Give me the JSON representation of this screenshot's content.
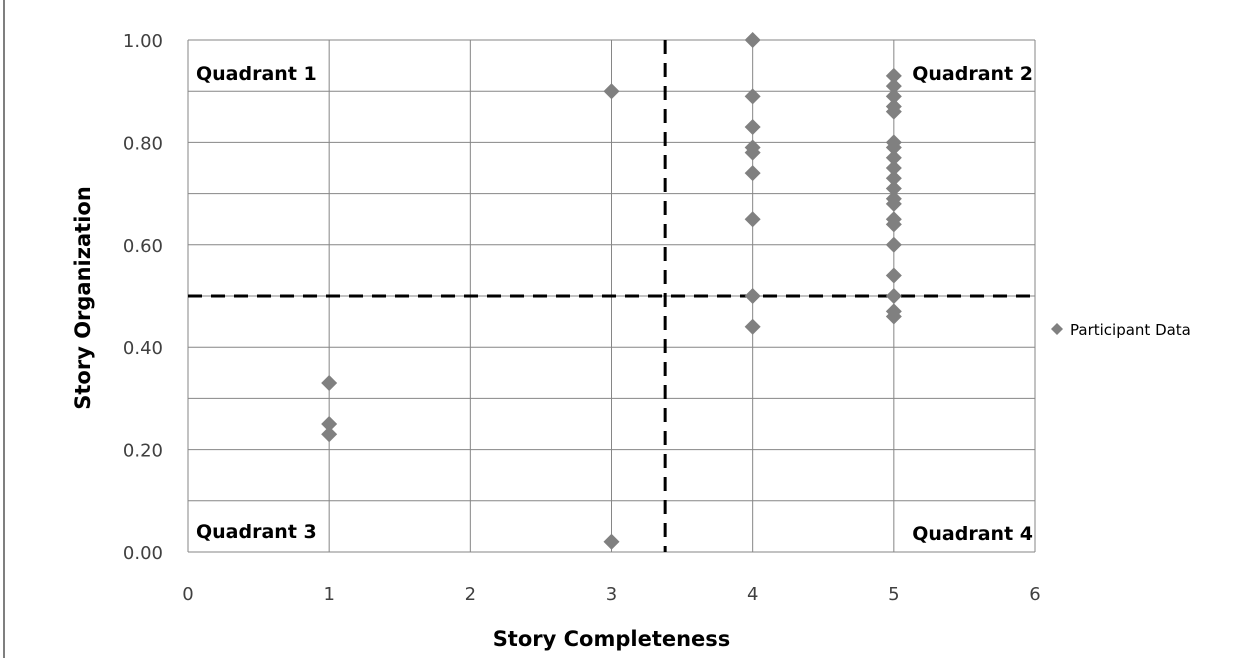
{
  "chart_data": {
    "type": "scatter",
    "title": "",
    "xlabel": "Story Completeness",
    "ylabel": "Story Organization",
    "xlim": [
      0,
      6
    ],
    "ylim": [
      0,
      1
    ],
    "x_ticks": [
      "0",
      "1",
      "2",
      "3",
      "4",
      "5",
      "6"
    ],
    "y_ticks": [
      "0.00",
      "0.20",
      "0.40",
      "0.60",
      "0.80",
      "1.00"
    ],
    "grid": true,
    "legend_placement": "right",
    "marker_color": "#808080",
    "series": [
      {
        "name": "Participant Data",
        "points": [
          {
            "x": 1,
            "y": 0.33
          },
          {
            "x": 1,
            "y": 0.25
          },
          {
            "x": 1,
            "y": 0.23
          },
          {
            "x": 3,
            "y": 0.9
          },
          {
            "x": 3,
            "y": 0.02
          },
          {
            "x": 4,
            "y": 1.0
          },
          {
            "x": 4,
            "y": 0.89
          },
          {
            "x": 4,
            "y": 0.83
          },
          {
            "x": 4,
            "y": 0.79
          },
          {
            "x": 4,
            "y": 0.78
          },
          {
            "x": 4,
            "y": 0.74
          },
          {
            "x": 4,
            "y": 0.65
          },
          {
            "x": 4,
            "y": 0.5
          },
          {
            "x": 4,
            "y": 0.44
          },
          {
            "x": 5,
            "y": 0.93
          },
          {
            "x": 5,
            "y": 0.91
          },
          {
            "x": 5,
            "y": 0.89
          },
          {
            "x": 5,
            "y": 0.87
          },
          {
            "x": 5,
            "y": 0.86
          },
          {
            "x": 5,
            "y": 0.8
          },
          {
            "x": 5,
            "y": 0.79
          },
          {
            "x": 5,
            "y": 0.77
          },
          {
            "x": 5,
            "y": 0.75
          },
          {
            "x": 5,
            "y": 0.73
          },
          {
            "x": 5,
            "y": 0.71
          },
          {
            "x": 5,
            "y": 0.69
          },
          {
            "x": 5,
            "y": 0.68
          },
          {
            "x": 5,
            "y": 0.65
          },
          {
            "x": 5,
            "y": 0.64
          },
          {
            "x": 5,
            "y": 0.6
          },
          {
            "x": 5,
            "y": 0.54
          },
          {
            "x": 5,
            "y": 0.5
          },
          {
            "x": 5,
            "y": 0.47
          },
          {
            "x": 5,
            "y": 0.46
          }
        ]
      }
    ],
    "reference_lines": [
      {
        "axis": "x",
        "value": 3.38,
        "style": "dashed"
      },
      {
        "axis": "y",
        "value": 0.5,
        "style": "dashed"
      }
    ],
    "quadrant_labels": [
      {
        "text": "Quadrant 1",
        "corner": "top-left"
      },
      {
        "text": "Quadrant 2",
        "corner": "top-right"
      },
      {
        "text": "Quadrant 3",
        "corner": "bottom-left"
      },
      {
        "text": "Quadrant 4",
        "corner": "bottom-right"
      }
    ]
  }
}
